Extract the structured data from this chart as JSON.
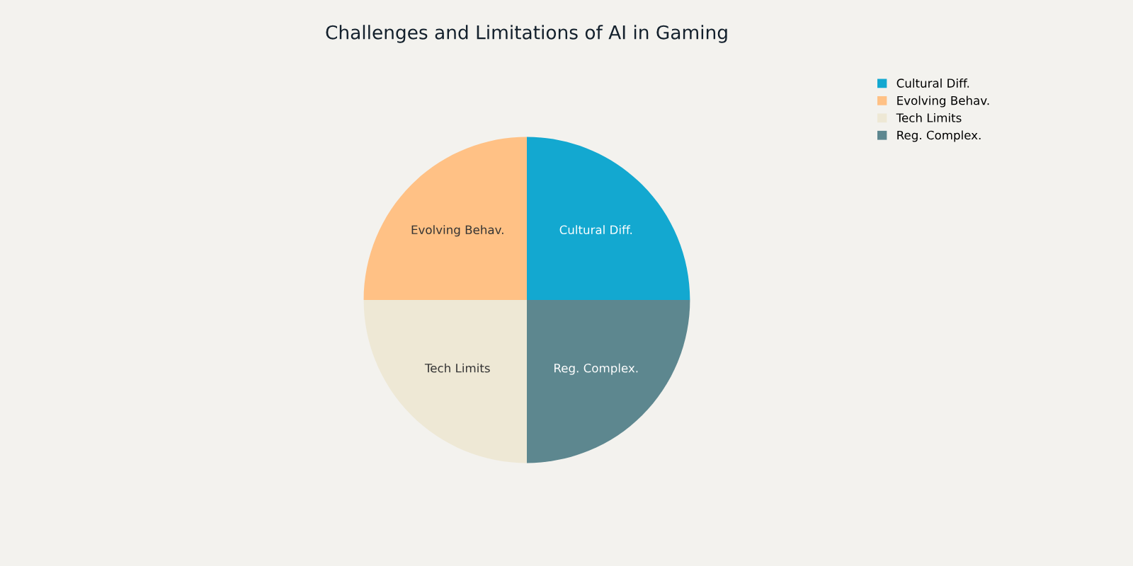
{
  "chart_data": {
    "type": "pie",
    "title": "Challenges and Limitations of AI in Gaming",
    "categories": [
      "Cultural Diff.",
      "Evolving Behav.",
      "Tech Limits",
      "Reg. Complex."
    ],
    "values": [
      25,
      25,
      25,
      25
    ],
    "colors": [
      "#13a8d0",
      "#ffc185",
      "#eee8d5",
      "#5d878f"
    ],
    "legend": "top right"
  }
}
